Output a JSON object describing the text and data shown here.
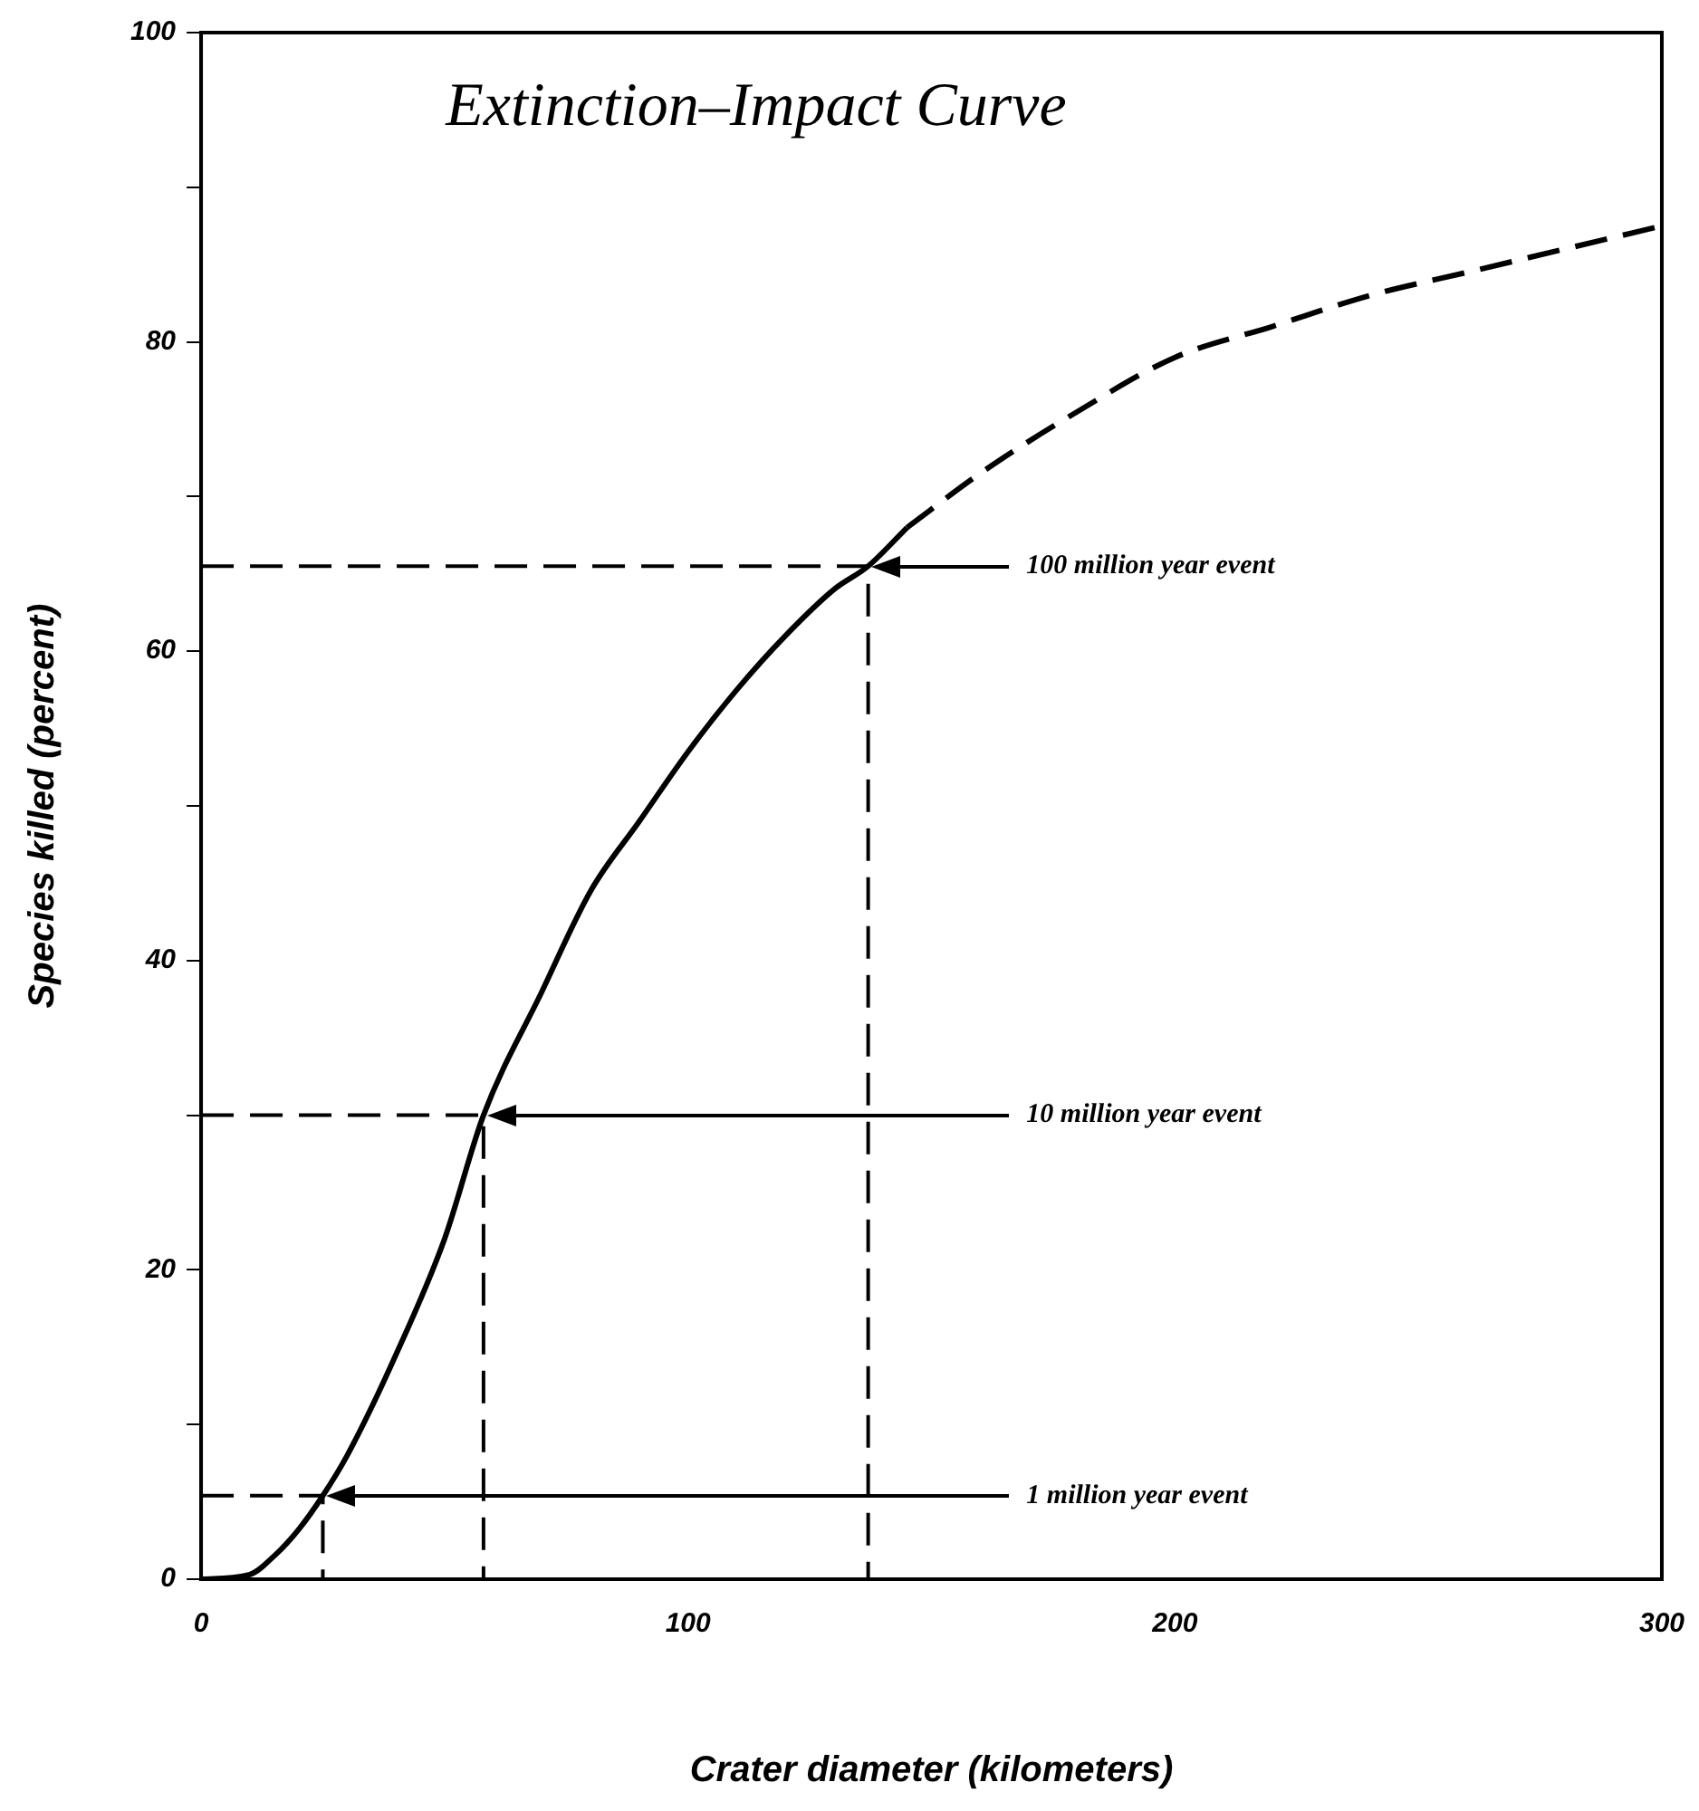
{
  "chart_data": {
    "type": "line",
    "title": "Extinction–Impact Curve",
    "xlabel": "Crater diameter (kilometers)",
    "ylabel": "Species killed (percent)",
    "xlim": [
      0,
      300
    ],
    "xticks": [
      0,
      100,
      200,
      300
    ],
    "ylim": [
      0,
      100
    ],
    "yticks": [
      0,
      {
        "value": 10,
        "label": null
      },
      20,
      {
        "value": 30,
        "label": null
      },
      40,
      {
        "value": 50,
        "label": null
      },
      60,
      {
        "value": 70,
        "label": null
      },
      80,
      {
        "value": 90,
        "label": null
      },
      100
    ],
    "grid": false,
    "legend": false,
    "marker": "none",
    "series": [
      {
        "color": "#000000",
        "line_style": "solid",
        "x": [
          0,
          10,
          15,
          20,
          25,
          30,
          40,
          50,
          58,
          70,
          80,
          90,
          100,
          110,
          120,
          130,
          137,
          145
        ],
        "values": [
          0,
          0.3,
          1.5,
          3.2,
          5.4,
          8,
          14.5,
          22,
          30,
          38,
          44.5,
          49,
          53.5,
          57.5,
          61,
          64,
          65.5,
          68
        ]
      },
      {
        "color": "#000000",
        "line_style": "dashed",
        "x": [
          145,
          160,
          180,
          200,
          220,
          240,
          260,
          280,
          300
        ],
        "values": [
          68,
          71.5,
          75.5,
          79,
          81,
          83,
          84.5,
          86,
          87.5
        ]
      },
      {
        "color": "#000000",
        "line_style": "dashed",
        "x": [
          0,
          25,
          25
        ],
        "values": [
          5.4,
          5.4,
          0
        ]
      },
      {
        "color": "#000000",
        "line_style": "dashed",
        "x": [
          0,
          58,
          58
        ],
        "values": [
          30,
          30,
          0
        ]
      },
      {
        "color": "#000000",
        "line_style": "dashed",
        "x": [
          0,
          137,
          137
        ],
        "values": [
          65.5,
          65.5,
          0
        ]
      }
    ],
    "annotations": [
      "1 million year event",
      "10 million year event",
      "100 million year event"
    ]
  }
}
